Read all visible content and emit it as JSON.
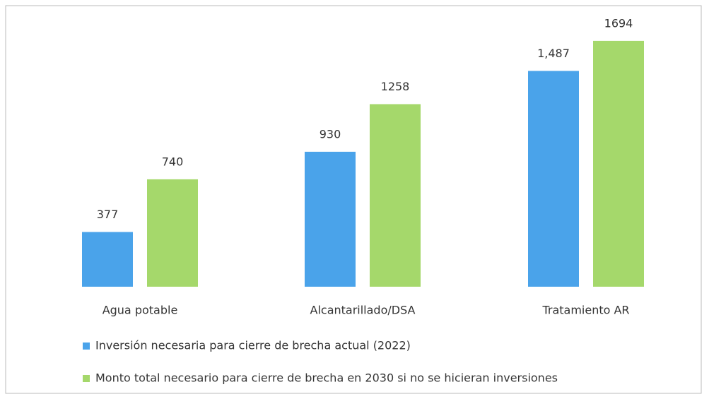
{
  "chart_data": {
    "type": "bar",
    "categories": [
      "Agua potable",
      "Alcantarillado/DSA",
      "Tratamiento AR"
    ],
    "series": [
      {
        "name": "Inversión necesaria para cierre de brecha actual  (2022)",
        "color": "#4aa3ea",
        "values": [
          377,
          930,
          1487
        ],
        "value_labels": [
          "377",
          "930",
          "1,487"
        ]
      },
      {
        "name": "Monto total necesario para cierre de brecha en 2030 si no se  hicieran inversiones",
        "color": "#a5d86b",
        "values": [
          740,
          1258,
          1694
        ]
      }
    ]
  }
}
